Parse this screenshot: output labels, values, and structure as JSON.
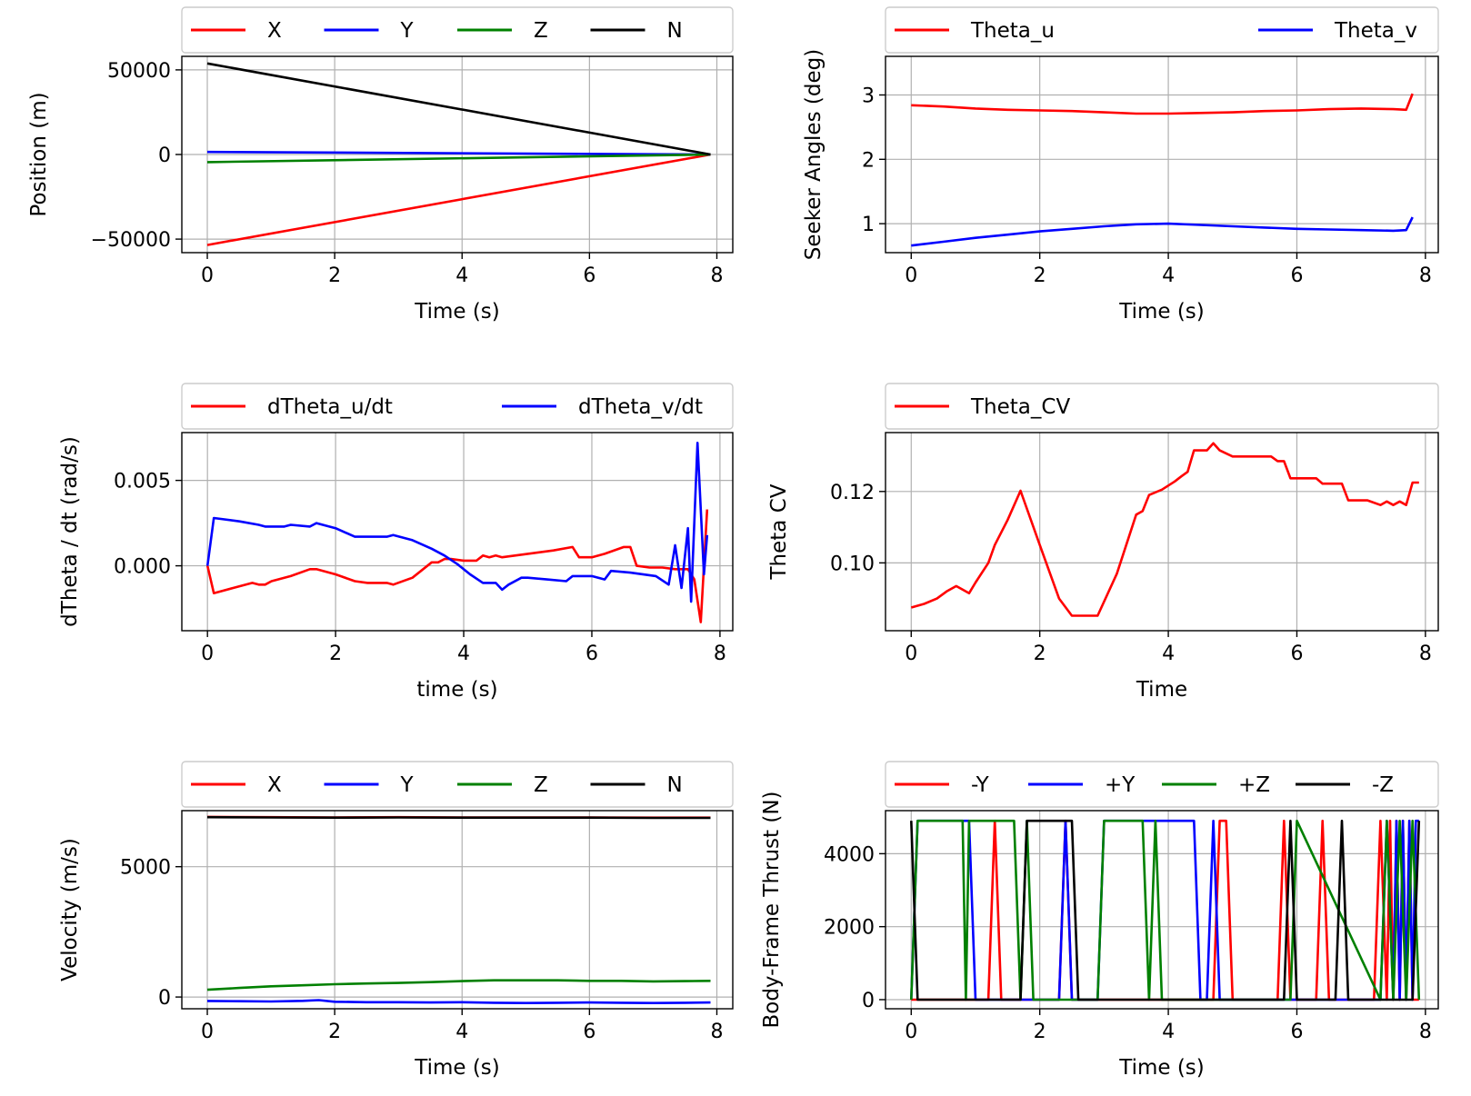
{
  "colors": {
    "red": "#ff0000",
    "blue": "#0000ff",
    "green": "#008000",
    "black": "#000000"
  },
  "chart_data": [
    {
      "type": "line",
      "xlabel": "Time (s)",
      "ylabel": "Position (m)",
      "xlim": [
        -0.4,
        8.25
      ],
      "ylim": [
        -58000,
        58000
      ],
      "xticks": [
        0,
        2,
        4,
        6,
        8
      ],
      "xtick_labels": [
        "0",
        "2",
        "4",
        "6",
        "8"
      ],
      "yticks": [
        -50000,
        0,
        50000
      ],
      "ytick_labels": [
        "−50000",
        "0",
        "50000"
      ],
      "legend": {
        "ncol": 4,
        "placement": "top"
      },
      "series": [
        {
          "name": "X",
          "color": "#ff0000",
          "x": [
            0,
            7.9
          ],
          "y": [
            -53500,
            0
          ]
        },
        {
          "name": "Y",
          "color": "#0000ff",
          "x": [
            0,
            7.9
          ],
          "y": [
            1500,
            0
          ]
        },
        {
          "name": "Z",
          "color": "#008000",
          "x": [
            0,
            7.9
          ],
          "y": [
            -4500,
            0
          ]
        },
        {
          "name": "N",
          "color": "#000000",
          "x": [
            0,
            7.9
          ],
          "y": [
            53800,
            0
          ]
        }
      ]
    },
    {
      "type": "line",
      "xlabel": "Time (s)",
      "ylabel": "Seeker Angles (deg)",
      "xlim": [
        -0.4,
        8.2
      ],
      "ylim": [
        0.55,
        3.6
      ],
      "xticks": [
        0,
        2,
        4,
        6,
        8
      ],
      "xtick_labels": [
        "0",
        "2",
        "4",
        "6",
        "8"
      ],
      "yticks": [
        1,
        2,
        3
      ],
      "ytick_labels": [
        "1",
        "2",
        "3"
      ],
      "legend": {
        "ncol": 2,
        "placement": "top"
      },
      "series": [
        {
          "name": "Theta_u",
          "color": "#ff0000",
          "x": [
            0,
            0.5,
            1,
            1.5,
            2,
            2.5,
            3,
            3.5,
            4,
            4.5,
            5,
            5.5,
            6,
            6.5,
            7,
            7.5,
            7.7,
            7.8
          ],
          "y": [
            2.84,
            2.82,
            2.79,
            2.77,
            2.76,
            2.75,
            2.73,
            2.71,
            2.71,
            2.72,
            2.73,
            2.75,
            2.76,
            2.78,
            2.79,
            2.78,
            2.77,
            3.02
          ]
        },
        {
          "name": "Theta_v",
          "color": "#0000ff",
          "x": [
            0,
            0.5,
            1,
            1.5,
            2,
            2.5,
            3,
            3.5,
            4,
            4.5,
            5,
            5.5,
            6,
            6.5,
            7,
            7.5,
            7.7,
            7.8
          ],
          "y": [
            0.66,
            0.72,
            0.78,
            0.83,
            0.88,
            0.92,
            0.96,
            0.99,
            1.0,
            0.98,
            0.96,
            0.94,
            0.92,
            0.91,
            0.9,
            0.89,
            0.9,
            1.1
          ]
        }
      ]
    },
    {
      "type": "line",
      "xlabel": "time (s)",
      "ylabel": "dTheta / dt (rad/s)",
      "xlim": [
        -0.4,
        8.2
      ],
      "ylim": [
        -0.0038,
        0.0078
      ],
      "xticks": [
        0,
        2,
        4,
        6,
        8
      ],
      "xtick_labels": [
        "0",
        "2",
        "4",
        "6",
        "8"
      ],
      "yticks": [
        0.0,
        0.005
      ],
      "ytick_labels": [
        "0.000",
        "0.005"
      ],
      "legend": {
        "ncol": 2,
        "placement": "top"
      },
      "series": [
        {
          "name": "dTheta_u/dt",
          "color": "#ff0000",
          "x": [
            0,
            0.1,
            0.4,
            0.7,
            0.8,
            0.9,
            1.0,
            1.3,
            1.6,
            1.7,
            2.0,
            2.3,
            2.5,
            2.8,
            2.9,
            3.2,
            3.5,
            3.6,
            3.7,
            3.8,
            4.0,
            4.2,
            4.3,
            4.4,
            4.5,
            4.6,
            5.0,
            5.4,
            5.7,
            5.8,
            6.0,
            6.2,
            6.5,
            6.6,
            6.7,
            6.9,
            7.1,
            7.3,
            7.5,
            7.6,
            7.7,
            7.8
          ],
          "y": [
            0,
            -0.0016,
            -0.0013,
            -0.001,
            -0.0011,
            -0.0011,
            -0.0009,
            -0.0006,
            -0.0002,
            -0.0002,
            -0.0005,
            -0.0009,
            -0.001,
            -0.001,
            -0.0011,
            -0.0007,
            0.0002,
            0.0002,
            0.0004,
            0.0004,
            0.0003,
            0.0003,
            0.0006,
            0.0005,
            0.0006,
            0.0005,
            0.0007,
            0.0009,
            0.0011,
            0.0005,
            0.0005,
            0.0007,
            0.0011,
            0.0011,
            0.0,
            -0.0001,
            -0.0001,
            -0.0002,
            -0.0002,
            -0.0008,
            -0.0033,
            0.0033
          ]
        },
        {
          "name": "dTheta_v/dt",
          "color": "#0000ff",
          "x": [
            0,
            0.1,
            0.5,
            0.8,
            0.9,
            1.0,
            1.2,
            1.3,
            1.6,
            1.7,
            2.0,
            2.3,
            2.5,
            2.8,
            2.9,
            3.2,
            3.5,
            3.7,
            3.9,
            4.1,
            4.3,
            4.5,
            4.6,
            4.7,
            4.9,
            5.0,
            5.3,
            5.6,
            5.7,
            6.0,
            6.2,
            6.3,
            6.6,
            7.0,
            7.2,
            7.3,
            7.4,
            7.5,
            7.55,
            7.65,
            7.75,
            7.8
          ],
          "y": [
            0,
            0.0028,
            0.0026,
            0.0024,
            0.0023,
            0.0023,
            0.0023,
            0.0024,
            0.0023,
            0.0025,
            0.0022,
            0.0017,
            0.0017,
            0.0017,
            0.0018,
            0.0015,
            0.001,
            0.0006,
            0.0001,
            -0.0005,
            -0.001,
            -0.001,
            -0.0014,
            -0.0011,
            -0.0007,
            -0.0007,
            -0.0008,
            -0.0009,
            -0.0006,
            -0.0006,
            -0.0008,
            -0.0003,
            -0.0004,
            -0.0006,
            -0.0011,
            0.0012,
            -0.0013,
            0.0022,
            -0.0021,
            0.0072,
            -0.0005,
            0.0018
          ]
        }
      ]
    },
    {
      "type": "line",
      "xlabel": "Time",
      "ylabel": "Theta CV",
      "xlim": [
        -0.4,
        8.2
      ],
      "ylim": [
        0.081,
        0.1365
      ],
      "xticks": [
        0,
        2,
        4,
        6,
        8
      ],
      "xtick_labels": [
        "0",
        "2",
        "4",
        "6",
        "8"
      ],
      "yticks": [
        0.1,
        0.12
      ],
      "ytick_labels": [
        "0.10",
        "0.12"
      ],
      "legend": {
        "ncol": 1,
        "placement": "top"
      },
      "series": [
        {
          "name": "Theta_CV",
          "color": "#ff0000",
          "x": [
            0,
            0.2,
            0.4,
            0.55,
            0.7,
            0.8,
            0.9,
            1.0,
            1.2,
            1.3,
            1.5,
            1.7,
            2.0,
            2.3,
            2.5,
            2.9,
            3.2,
            3.5,
            3.6,
            3.7,
            3.9,
            4.1,
            4.2,
            4.3,
            4.4,
            4.6,
            4.7,
            4.8,
            5.0,
            5.4,
            5.6,
            5.7,
            5.8,
            5.9,
            6.0,
            6.3,
            6.4,
            6.5,
            6.7,
            6.8,
            6.9,
            7.0,
            7.1,
            7.3,
            7.4,
            7.5,
            7.6,
            7.7,
            7.8,
            7.9
          ],
          "y": [
            0.0875,
            0.0885,
            0.09,
            0.092,
            0.0935,
            0.0925,
            0.0915,
            0.0945,
            0.1,
            0.105,
            0.112,
            0.1202,
            0.105,
            0.09,
            0.0852,
            0.0852,
            0.097,
            0.1135,
            0.1145,
            0.119,
            0.1205,
            0.1228,
            0.1242,
            0.1255,
            0.1315,
            0.1315,
            0.1335,
            0.1315,
            0.1298,
            0.1298,
            0.1298,
            0.1285,
            0.1285,
            0.1237,
            0.1237,
            0.1237,
            0.1222,
            0.1222,
            0.1222,
            0.1175,
            0.1175,
            0.1175,
            0.1175,
            0.1162,
            0.1172,
            0.1162,
            0.1172,
            0.1162,
            0.1225,
            0.1225
          ]
        }
      ]
    },
    {
      "type": "line",
      "xlabel": "Time (s)",
      "ylabel": "Velocity (m/s)",
      "xlim": [
        -0.4,
        8.25
      ],
      "ylim": [
        -450,
        7150
      ],
      "xticks": [
        0,
        2,
        4,
        6,
        8
      ],
      "xtick_labels": [
        "0",
        "2",
        "4",
        "6",
        "8"
      ],
      "yticks": [
        0,
        5000
      ],
      "ytick_labels": [
        "0",
        "5000"
      ],
      "legend": {
        "ncol": 4,
        "placement": "top"
      },
      "series": [
        {
          "name": "X",
          "color": "#ff0000",
          "x": [
            0,
            1,
            2,
            3,
            4,
            5,
            6,
            7,
            7.9
          ],
          "y": [
            6910,
            6900,
            6890,
            6900,
            6890,
            6890,
            6890,
            6880,
            6880
          ]
        },
        {
          "name": "Y",
          "color": "#0000ff",
          "x": [
            0,
            0.5,
            1,
            1.5,
            1.75,
            2,
            2.5,
            3,
            3.5,
            4,
            4.5,
            5,
            5.5,
            6,
            6.5,
            7,
            7.5,
            7.9
          ],
          "y": [
            -150,
            -160,
            -170,
            -145,
            -120,
            -180,
            -200,
            -200,
            -210,
            -200,
            -220,
            -230,
            -220,
            -210,
            -220,
            -230,
            -220,
            -210
          ]
        },
        {
          "name": "Z",
          "color": "#008000",
          "x": [
            0,
            0.5,
            1,
            1.5,
            2,
            2.5,
            3,
            3.5,
            4,
            4.5,
            5,
            5.5,
            6,
            6.5,
            7,
            7.5,
            7.9
          ],
          "y": [
            280,
            350,
            410,
            450,
            490,
            520,
            540,
            570,
            610,
            640,
            640,
            640,
            620,
            620,
            600,
            610,
            620
          ]
        },
        {
          "name": "N",
          "color": "#000000",
          "x": [
            0,
            1,
            2,
            3,
            4,
            5,
            6,
            7,
            7.9
          ],
          "y": [
            6900,
            6890,
            6880,
            6890,
            6880,
            6880,
            6880,
            6870,
            6870
          ]
        }
      ]
    },
    {
      "type": "line",
      "xlabel": "Time (s)",
      "ylabel": "Body-Frame Thrust (N)",
      "xlim": [
        -0.4,
        8.2
      ],
      "ylim": [
        -250,
        5180
      ],
      "xticks": [
        0,
        2,
        4,
        6,
        8
      ],
      "xtick_labels": [
        "0",
        "2",
        "4",
        "6",
        "8"
      ],
      "yticks": [
        0,
        2000,
        4000
      ],
      "ytick_labels": [
        "0",
        "2000",
        "4000"
      ],
      "legend": {
        "ncol": 4,
        "placement": "top"
      },
      "series": [
        {
          "name": "-Y",
          "color": "#ff0000",
          "x": [
            0,
            1.2,
            1.3,
            1.4,
            2.3,
            2.4,
            2.5,
            4.7,
            4.8,
            4.9,
            5.0,
            5.7,
            5.8,
            5.9,
            6.3,
            6.4,
            6.5,
            7.2,
            7.3,
            7.4,
            7.45,
            7.5,
            7.55,
            7.6,
            7.65,
            7.7,
            7.75,
            7.8,
            7.9
          ],
          "y": [
            0,
            0,
            4900,
            0,
            0,
            4900,
            0,
            0,
            4900,
            4900,
            0,
            0,
            4900,
            0,
            0,
            4900,
            0,
            0,
            4900,
            0,
            4900,
            0,
            4900,
            0,
            4900,
            0,
            4900,
            0,
            0
          ]
        },
        {
          "name": "+Y",
          "color": "#0000ff",
          "x": [
            0,
            0.1,
            0.9,
            1.0,
            1.1,
            2.3,
            2.4,
            2.5,
            2.9,
            3.0,
            4.4,
            4.5,
            4.6,
            4.7,
            4.8,
            7.3,
            7.4,
            7.5,
            7.55,
            7.6,
            7.65,
            7.7,
            7.75,
            7.8,
            7.85,
            7.9
          ],
          "y": [
            0,
            4900,
            4900,
            0,
            0,
            0,
            4900,
            0,
            0,
            4900,
            4900,
            0,
            0,
            4900,
            0,
            0,
            4900,
            0,
            4900,
            0,
            4900,
            0,
            4900,
            0,
            4900,
            4900
          ]
        },
        {
          "name": "+Z",
          "color": "#008000",
          "x": [
            0,
            0.1,
            0.8,
            0.85,
            0.9,
            1.6,
            1.7,
            1.8,
            1.9,
            2.9,
            3.0,
            3.6,
            3.7,
            3.8,
            3.9,
            5.9,
            6.0,
            7.3,
            7.4,
            7.5,
            7.6,
            7.7,
            7.8,
            7.9
          ],
          "y": [
            0,
            4900,
            4900,
            0,
            4900,
            4900,
            0,
            4900,
            0,
            0,
            4900,
            4900,
            0,
            4900,
            0,
            0,
            4900,
            0,
            4900,
            0,
            4900,
            0,
            4900,
            0
          ]
        },
        {
          "name": "-Z",
          "color": "#000000",
          "x": [
            0,
            0.1,
            0.2,
            1.7,
            1.8,
            2.5,
            2.6,
            5.8,
            5.9,
            6.0,
            6.6,
            6.7,
            6.8,
            7.8,
            7.9
          ],
          "y": [
            4900,
            0,
            0,
            0,
            4900,
            4900,
            0,
            0,
            4900,
            0,
            0,
            4900,
            0,
            0,
            4900
          ]
        }
      ]
    }
  ]
}
